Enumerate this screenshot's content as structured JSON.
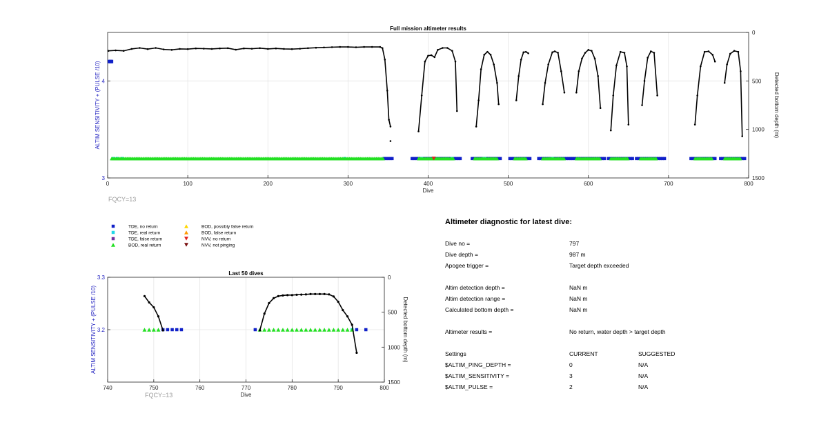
{
  "chart_data": [
    {
      "type": "scatter",
      "title": "Full mission altimeter results",
      "xlabel": "Dive",
      "ylabel": "ALTIM SENSITIVITY + (PULSE /10)",
      "y2label": "Detected bottom depth (m)",
      "xlim": [
        0,
        800
      ],
      "ylim": [
        3,
        4.5
      ],
      "y2lim": [
        0,
        1500
      ],
      "y2_reversed": true,
      "xticks": [
        "0",
        "100",
        "200",
        "300",
        "400",
        "500",
        "600",
        "700",
        "800"
      ],
      "yticks": [
        "3",
        "4"
      ],
      "y2ticks": [
        "0",
        "500",
        "1000",
        "1500"
      ],
      "grid": true,
      "footnote": "FQCY=13",
      "setting_series": {
        "name": "TDE, no return",
        "y": 4.2,
        "x": [
          0,
          7
        ]
      },
      "bod_real_segments": [
        [
          5,
          345
        ],
        [
          388,
          432
        ],
        [
          458,
          487
        ],
        [
          508,
          523
        ],
        [
          543,
          570
        ],
        [
          585,
          615
        ],
        [
          628,
          650
        ],
        [
          665,
          685
        ],
        [
          733,
          755
        ],
        [
          770,
          790
        ]
      ],
      "tde_no_return_segments": [
        [
          345,
          355
        ],
        [
          380,
          440
        ],
        [
          455,
          492
        ],
        [
          502,
          528
        ],
        [
          538,
          578
        ],
        [
          580,
          620
        ],
        [
          625,
          655
        ],
        [
          660,
          695
        ],
        [
          728,
          760
        ],
        [
          765,
          795
        ]
      ],
      "false_return": [
        [
          407,
          3.2
        ]
      ],
      "depth_curves": [
        {
          "x": [
            1,
            10,
            20,
            30,
            40,
            50,
            60,
            70,
            80,
            90,
            100,
            110,
            120,
            130,
            140,
            150,
            160,
            170,
            180,
            190,
            200,
            210,
            220,
            230,
            240,
            250,
            260,
            270,
            280,
            290,
            300,
            310,
            320,
            330,
            340,
            343,
            346,
            349,
            351,
            353
          ],
          "y": [
            190,
            185,
            190,
            170,
            160,
            172,
            160,
            175,
            180,
            170,
            172,
            165,
            167,
            170,
            165,
            162,
            178,
            165,
            168,
            162,
            170,
            165,
            170,
            172,
            168,
            162,
            158,
            155,
            152,
            150,
            150,
            153,
            150,
            150,
            150,
            162,
            280,
            600,
            900,
            970
          ]
        },
        {
          "x": [
            353
          ],
          "y": [
            1120
          ]
        },
        {
          "x": [
            388,
            392,
            396,
            400,
            404,
            408,
            412,
            418,
            424,
            430,
            434,
            436
          ],
          "y": [
            1020,
            650,
            300,
            240,
            235,
            255,
            180,
            160,
            160,
            190,
            300,
            810
          ]
        },
        {
          "x": [
            460,
            463,
            466,
            470,
            474,
            478,
            482,
            486,
            488
          ],
          "y": [
            970,
            700,
            380,
            230,
            200,
            230,
            330,
            520,
            740
          ]
        },
        {
          "x": [
            510,
            513,
            516,
            519,
            522,
            525
          ],
          "y": [
            700,
            450,
            280,
            205,
            200,
            215
          ]
        },
        {
          "x": [
            543,
            546,
            550,
            555,
            558,
            562,
            566,
            570
          ],
          "y": [
            740,
            520,
            330,
            205,
            195,
            210,
            400,
            620
          ]
        },
        {
          "x": [
            585,
            588,
            592,
            596,
            600,
            604,
            608,
            612,
            615
          ],
          "y": [
            620,
            400,
            270,
            210,
            180,
            190,
            270,
            450,
            780
          ]
        },
        {
          "x": [
            628,
            631,
            635,
            640,
            645,
            648,
            650
          ],
          "y": [
            1010,
            650,
            340,
            200,
            210,
            350,
            950
          ]
        },
        {
          "x": [
            667,
            670,
            674,
            678,
            682,
            686
          ],
          "y": [
            750,
            500,
            260,
            195,
            210,
            650
          ]
        },
        {
          "x": [
            733,
            736,
            740,
            745,
            750,
            755,
            758
          ],
          "y": [
            950,
            650,
            350,
            200,
            195,
            230,
            300
          ]
        },
        {
          "x": [
            770,
            773,
            777,
            782,
            787,
            790,
            792
          ],
          "y": [
            520,
            330,
            220,
            190,
            200,
            400,
            1070
          ]
        }
      ]
    },
    {
      "type": "scatter",
      "title": "Last 50 dives",
      "xlabel": "Dive",
      "ylabel": "ALTIM SENSITIVITY + (PULSE /10)",
      "y2label": "Detected bottom depth (m)",
      "xlim": [
        740,
        800
      ],
      "ylim": [
        3.1,
        3.3
      ],
      "y2lim": [
        0,
        1500
      ],
      "y2_reversed": true,
      "xticks": [
        "740",
        "750",
        "760",
        "770",
        "780",
        "790",
        "800"
      ],
      "yticks": [
        "3.2",
        "3.3"
      ],
      "y2ticks": [
        "0",
        "500",
        "1000",
        "1500"
      ],
      "grid": true,
      "footnote": "FQCY=13",
      "bod_real_x": [
        748,
        749,
        750,
        751,
        773,
        774,
        775,
        776,
        777,
        778,
        779,
        780,
        781,
        782,
        783,
        784,
        785,
        786,
        787,
        788,
        789,
        790,
        791,
        792,
        793
      ],
      "tde_no_return_x": [
        752,
        753,
        754,
        755,
        756,
        772,
        794,
        796
      ],
      "tde_real_x": [
        793
      ],
      "level": 3.2,
      "depth_curves": [
        {
          "x": [
            748,
            749,
            750,
            751,
            752
          ],
          "y": [
            270,
            360,
            430,
            560,
            760
          ]
        },
        {
          "x": [
            773,
            774,
            775,
            776,
            777,
            778,
            779,
            780,
            781,
            782,
            783,
            784,
            785,
            786,
            787,
            788,
            789,
            790,
            791,
            792,
            793,
            794
          ],
          "y": [
            760,
            520,
            370,
            300,
            270,
            260,
            255,
            255,
            250,
            248,
            245,
            240,
            240,
            240,
            240,
            245,
            275,
            350,
            470,
            560,
            680,
            1080
          ]
        }
      ]
    }
  ],
  "legend": [
    {
      "label": "TDE, no return",
      "shape": "square",
      "color": "#1020c8"
    },
    {
      "label": "TDE, real return",
      "shape": "square",
      "color": "#20d8e8"
    },
    {
      "label": "TDE, false return",
      "shape": "square",
      "color": "#7030a0"
    },
    {
      "label": "BOD, real return",
      "shape": "triangle-up",
      "color": "#22e022"
    },
    {
      "label": "BOD, possibly false return",
      "shape": "triangle-up",
      "color": "#ffd700"
    },
    {
      "label": "BOD, false return",
      "shape": "triangle-up",
      "color": "#ff9a00"
    },
    {
      "label": "NVV, no return",
      "shape": "triangle-down",
      "color": "#e02020"
    },
    {
      "label": "NVV, not pinging",
      "shape": "triangle-down",
      "color": "#7a1010"
    }
  ],
  "diagnostic": {
    "heading": "Altimeter diagnostic for latest dive:",
    "rows": [
      {
        "label": "Dive no =",
        "value": "797"
      },
      {
        "label": "Dive depth =",
        "value": "987 m"
      },
      {
        "label": "Apogee trigger =",
        "value": "Target depth exceeded"
      },
      {
        "label": "Altim detection depth =",
        "value": "NaN m"
      },
      {
        "label": "Altim detection range =",
        "value": "NaN m"
      },
      {
        "label": "Calculated bottom depth =",
        "value": "NaN m"
      },
      {
        "label": "Altimeter results =",
        "value": "No return, water depth > target depth"
      }
    ],
    "settings_header": {
      "label": "Settings",
      "current": "CURRENT",
      "suggested": "SUGGESTED"
    },
    "settings": [
      {
        "label": "$ALTIM_PING_DEPTH =",
        "current": "0",
        "suggested": "N/A"
      },
      {
        "label": "$ALTIM_SENSITIVITY =",
        "current": "3",
        "suggested": "N/A"
      },
      {
        "label": "$ALTIM_PULSE =",
        "current": "2",
        "suggested": "N/A"
      }
    ]
  }
}
